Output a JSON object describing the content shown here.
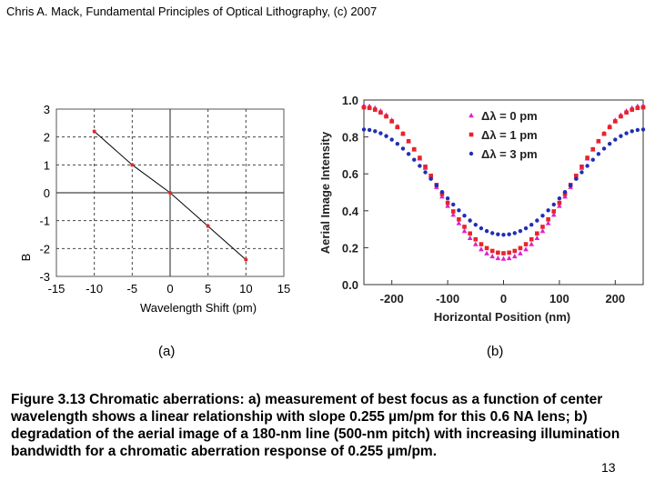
{
  "header": {
    "text": "Chris A. Mack, Fundamental Principles of Optical Lithography, (c) 2007"
  },
  "panels": {
    "a": "(a)",
    "b": "(b)"
  },
  "caption": {
    "text": "Figure 3.13  Chromatic aberrations:  a) measurement of best focus as a function of center wavelength shows a linear relationship with slope 0.255 µm/pm for this 0.6 NA lens;  b) degradation of the aerial image of a 180-nm line (500-nm pitch) with increasing illumination bandwidth for a chromatic aberration response of 0.255 µm/pm."
  },
  "page_number": "13",
  "colors": {
    "red": "#e8232a",
    "magenta": "#e020c8",
    "blue": "#1f2fb4",
    "grid": "#555555"
  },
  "chart_data": [
    {
      "type": "line",
      "title": "",
      "xlabel": "Wavelength Shift (pm)",
      "ylabel": "B",
      "xlim": [
        -15,
        15
      ],
      "ylim": [
        -3,
        3
      ],
      "xticks": [
        -15,
        -10,
        -5,
        0,
        5,
        10,
        15
      ],
      "yticks": [
        3,
        2,
        1,
        0,
        -1,
        -2,
        -3
      ],
      "xtick_labels": [
        "-15",
        "-10",
        "-5",
        "0",
        "5",
        "10",
        "15"
      ],
      "ytick_labels": [
        "3",
        "2",
        "1",
        "0",
        "-1",
        "-2",
        "-3"
      ],
      "grid": true,
      "series": [
        {
          "name": "best focus",
          "color": "#e8232a",
          "x": [
            -10,
            -5,
            0,
            5,
            10
          ],
          "y": [
            2.2,
            1.0,
            0.0,
            -1.2,
            -2.4
          ]
        }
      ]
    },
    {
      "type": "scatter",
      "title": "",
      "xlabel": "Horizontal Position (nm)",
      "ylabel": "Aerial Image Intensity",
      "xlim": [
        -250,
        250
      ],
      "ylim": [
        0,
        1.0
      ],
      "xticks": [
        -200,
        -100,
        0,
        100,
        200
      ],
      "yticks": [
        0.0,
        0.2,
        0.4,
        0.6,
        0.8,
        1.0
      ],
      "xtick_labels": [
        "-200",
        "-100",
        "0",
        "100",
        "200"
      ],
      "ytick_labels": [
        "0.0",
        "0.2",
        "0.4",
        "0.6",
        "0.8",
        "1.0"
      ],
      "legend_position": "top-right",
      "series": [
        {
          "name": "Δλ = 0 pm",
          "marker": "triangle",
          "color": "#e020c8",
          "center": 0.14,
          "edge": 0.97,
          "sample_step_nm": 10
        },
        {
          "name": "Δλ = 1 pm",
          "marker": "square",
          "color": "#e8232a",
          "center": 0.17,
          "edge": 0.96,
          "sample_step_nm": 10
        },
        {
          "name": "Δλ = 3 pm",
          "marker": "circle",
          "color": "#1f2fb4",
          "center": 0.27,
          "edge": 0.84,
          "sample_step_nm": 10
        }
      ]
    }
  ]
}
